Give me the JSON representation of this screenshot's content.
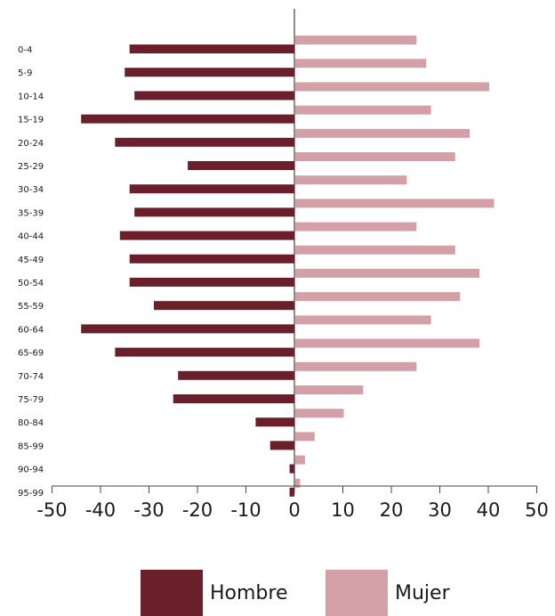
{
  "chart_data": {
    "type": "bar",
    "orientation": "horizontal",
    "categories": [
      "0-4",
      "5-9",
      "10-14",
      "15-19",
      "20-24",
      "25-29",
      "30-34",
      "35-39",
      "40-44",
      "45-49",
      "50-54",
      "55-59",
      "60-64",
      "65-69",
      "70-74",
      "75-79",
      "80-84",
      "85-99",
      "90-94",
      "95-99"
    ],
    "series": [
      {
        "name": "Hombre",
        "color": "#6b1f2a",
        "values": [
          -34,
          -35,
          -33,
          -44,
          -37,
          -22,
          -34,
          -33,
          -36,
          -34,
          -34,
          -29,
          -44,
          -37,
          -24,
          -25,
          -8,
          -5,
          -1,
          -1
        ]
      },
      {
        "name": "Mujer",
        "color": "#d4a0a7",
        "values": [
          25,
          27,
          40,
          28,
          36,
          33,
          23,
          41,
          25,
          33,
          38,
          34,
          28,
          38,
          25,
          14,
          10,
          4,
          2,
          1
        ]
      }
    ],
    "x_ticks": [
      "-50",
      "-40",
      "-30",
      "-20",
      "-10",
      "0",
      "10",
      "20",
      "30",
      "40",
      "50"
    ],
    "xlim": [
      -50,
      50
    ],
    "legend": {
      "position": "bottom",
      "items": [
        "Hombre",
        "Mujer"
      ]
    },
    "grid": false
  }
}
